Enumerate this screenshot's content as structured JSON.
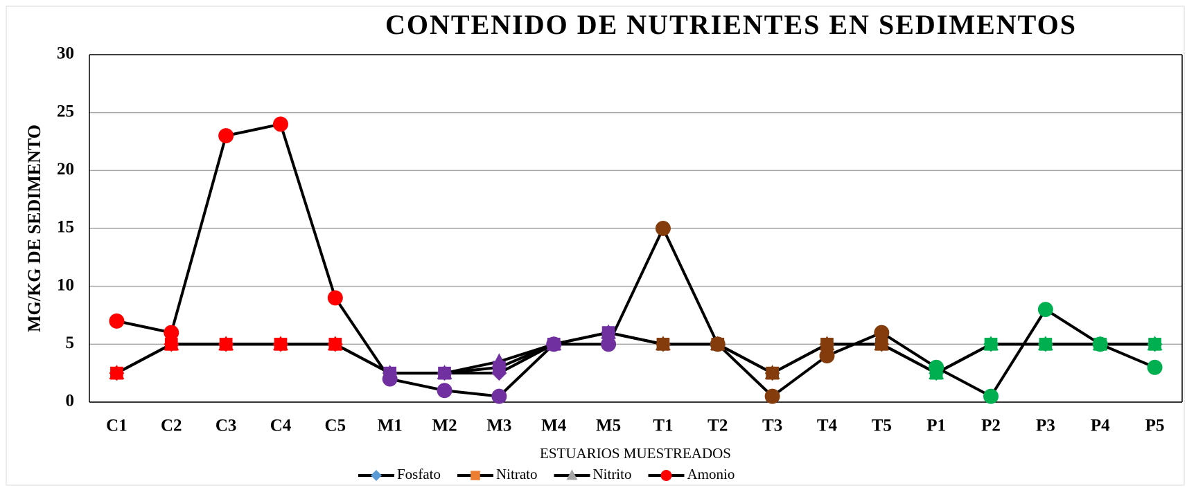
{
  "chart_data": {
    "type": "line",
    "title": "CONTENIDO DE NUTRIENTES EN SEDIMENTOS",
    "x_label": "ESTUARIOS MUESTREADOS",
    "y_label": "MG/KG DE SEDIMENTO",
    "categories": [
      "C1",
      "C2",
      "C3",
      "C4",
      "C5",
      "M1",
      "M2",
      "M3",
      "M4",
      "M5",
      "T1",
      "T2",
      "T3",
      "T4",
      "T5",
      "P1",
      "P2",
      "P3",
      "P4",
      "P5"
    ],
    "marker_colors": [
      "#ff0000",
      "#ff0000",
      "#ff0000",
      "#ff0000",
      "#ff0000",
      "#7030a0",
      "#7030a0",
      "#7030a0",
      "#7030a0",
      "#7030a0",
      "#843c0c",
      "#843c0c",
      "#843c0c",
      "#843c0c",
      "#843c0c",
      "#00b050",
      "#00b050",
      "#00b050",
      "#00b050",
      "#00b050"
    ],
    "line_color": "#000000",
    "series": [
      {
        "name": "Fosfato",
        "color": "#5b9bd5",
        "marker": "diamond",
        "values": [
          2.5,
          5,
          5,
          5,
          5,
          2.5,
          2.5,
          2.5,
          5,
          6,
          5,
          5,
          2.5,
          5,
          5,
          2.5,
          5,
          5,
          5,
          5
        ]
      },
      {
        "name": "Nitrato",
        "color": "#ed7d31",
        "marker": "square",
        "values": [
          2.5,
          5,
          5,
          5,
          5,
          2.5,
          2.5,
          3,
          5,
          6,
          5,
          5,
          2.5,
          5,
          5,
          2.5,
          5,
          5,
          5,
          5
        ]
      },
      {
        "name": "Nitrito",
        "color": "#a5a5a5",
        "marker": "triangle",
        "values": [
          2.5,
          5,
          5,
          5,
          5,
          2.5,
          2.5,
          3.5,
          5,
          6,
          5,
          5,
          2.5,
          5,
          5,
          2.5,
          5,
          5,
          5,
          5
        ]
      },
      {
        "name": "Amonio",
        "color": "#ff0000",
        "marker": "circle",
        "values": [
          7,
          6,
          23,
          24,
          9,
          2,
          1,
          0.5,
          5,
          5,
          15,
          5,
          0.5,
          4,
          6,
          3,
          0.5,
          8,
          5,
          3
        ]
      }
    ],
    "ylim": [
      0,
      30
    ],
    "yticks": [
      0,
      5,
      10,
      15,
      20,
      25,
      30
    ],
    "grid": true
  }
}
